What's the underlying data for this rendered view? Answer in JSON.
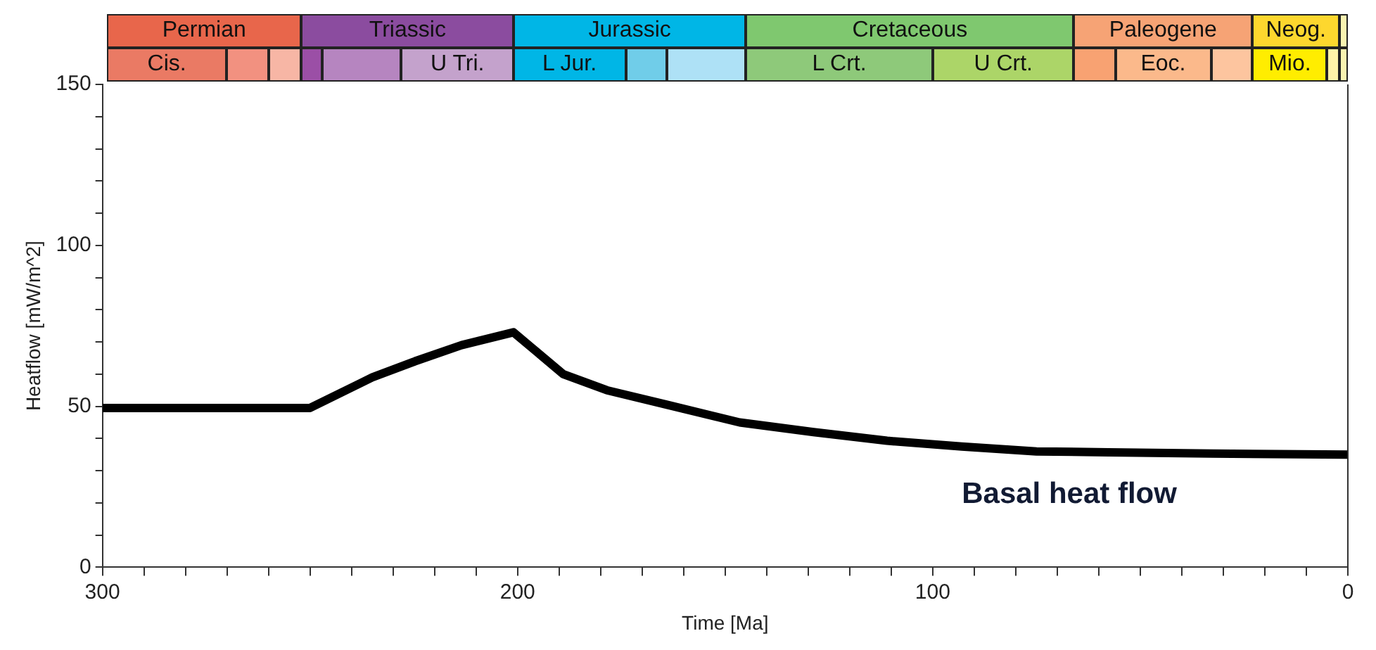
{
  "chart_data": {
    "type": "line",
    "xlabel": "Time [Ma]",
    "ylabel": "Heatflow [mW/m^2]",
    "x": [
      300,
      250,
      235,
      224.7,
      213.5,
      201,
      189,
      178.5,
      164,
      146.5,
      128.7,
      111,
      93,
      75,
      57.6,
      32.7,
      0
    ],
    "series": [
      {
        "color": "#000000",
        "values": [
          49.5,
          49.5,
          59,
          64,
          69,
          73,
          60,
          55,
          50.5,
          45,
          42,
          39.3,
          37.5,
          36,
          35.7,
          35.3,
          35
        ]
      }
    ],
    "xlim": [
      300,
      0
    ],
    "ylim": [
      0,
      150
    ],
    "xticks": [
      300,
      {
        "value": 290,
        "label": null
      },
      {
        "value": 280,
        "label": null
      },
      {
        "value": 270,
        "label": null
      },
      {
        "value": 260,
        "label": null
      },
      {
        "value": 250,
        "label": null
      },
      {
        "value": 240,
        "label": null
      },
      {
        "value": 230,
        "label": null
      },
      {
        "value": 220,
        "label": null
      },
      {
        "value": 210,
        "label": null
      },
      200,
      {
        "value": 190,
        "label": null
      },
      {
        "value": 180,
        "label": null
      },
      {
        "value": 170,
        "label": null
      },
      {
        "value": 160,
        "label": null
      },
      {
        "value": 150,
        "label": null
      },
      {
        "value": 140,
        "label": null
      },
      {
        "value": 130,
        "label": null
      },
      {
        "value": 120,
        "label": null
      },
      {
        "value": 110,
        "label": null
      },
      100,
      {
        "value": 90,
        "label": null
      },
      {
        "value": 80,
        "label": null
      },
      {
        "value": 70,
        "label": null
      },
      {
        "value": 60,
        "label": null
      },
      {
        "value": 50,
        "label": null
      },
      {
        "value": 40,
        "label": null
      },
      {
        "value": 30,
        "label": null
      },
      {
        "value": 20,
        "label": null
      },
      {
        "value": 10,
        "label": null
      },
      0
    ],
    "yticks": [
      0,
      {
        "value": 10,
        "label": null
      },
      {
        "value": 20,
        "label": null
      },
      {
        "value": 30,
        "label": null
      },
      {
        "value": 40,
        "label": null
      },
      50,
      {
        "value": 60,
        "label": null
      },
      {
        "value": 70,
        "label": null
      },
      {
        "value": 80,
        "label": null
      },
      {
        "value": 90,
        "label": null
      },
      100,
      {
        "value": 110,
        "label": null
      },
      {
        "value": 120,
        "label": null
      },
      {
        "value": 130,
        "label": null
      },
      {
        "value": 140,
        "label": null
      },
      150
    ],
    "grid": false,
    "legend": false,
    "marker": "none",
    "line_style": "solid",
    "annotations": [
      "Basal heat flow",
      "Permian",
      "Triassic",
      "Jurassic",
      "Cretaceous",
      "Paleogene",
      "Neog.",
      "Cis.",
      "U Tri.",
      "L Jur.",
      "L Crt.",
      "U Crt.",
      "Eoc.",
      "Mio."
    ]
  }
}
